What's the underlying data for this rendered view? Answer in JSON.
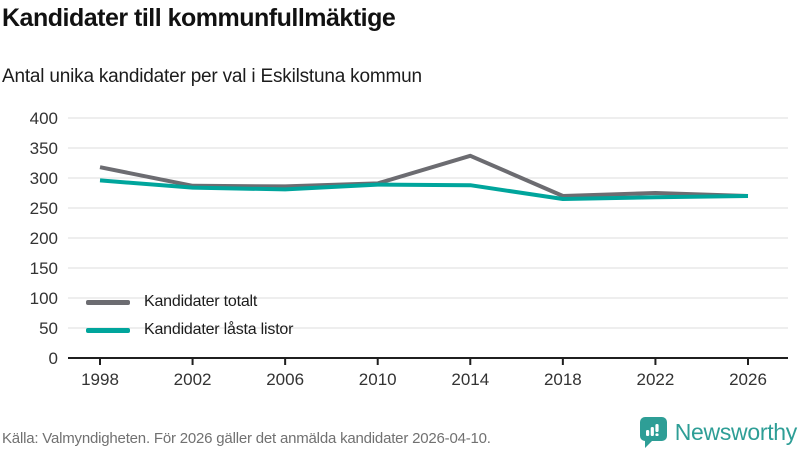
{
  "header": {
    "title": "Kandidater till kommunfullmäktige",
    "subtitle": "Antal unika kandidater per val i Eskilstuna kommun"
  },
  "footer": {
    "source_text": "Källa: Valmyndigheten. För 2026 gäller det anmälda kandidater 2026-04-10.",
    "brand": "Newsworthy"
  },
  "colors": {
    "total": "#6c6c71",
    "locked": "#00a59c",
    "brand": "#2e9e96",
    "grid": "#dedede",
    "axis": "#1f1f1f",
    "tick_label": "#333333",
    "legend_text": "#1c1c1c"
  },
  "chart_data": {
    "type": "line",
    "x": [
      1998,
      2002,
      2006,
      2010,
      2014,
      2018,
      2022,
      2026
    ],
    "series": [
      {
        "name": "Kandidater totalt",
        "color_key": "total",
        "values": [
          318,
          287,
          286,
          291,
          337,
          270,
          275,
          270
        ]
      },
      {
        "name": "Kandidater låsta listor",
        "color_key": "locked",
        "values": [
          296,
          284,
          281,
          289,
          288,
          265,
          268,
          270
        ]
      }
    ],
    "title": "Kandidater till kommunfullmäktige",
    "subtitle": "Antal unika kandidater per val i Eskilstuna kommun",
    "xlabel": "",
    "ylabel": "",
    "ylim": [
      0,
      400
    ],
    "ytick_step": 50,
    "grid": "horizontal",
    "legend_position": "inside-bottom-left"
  }
}
